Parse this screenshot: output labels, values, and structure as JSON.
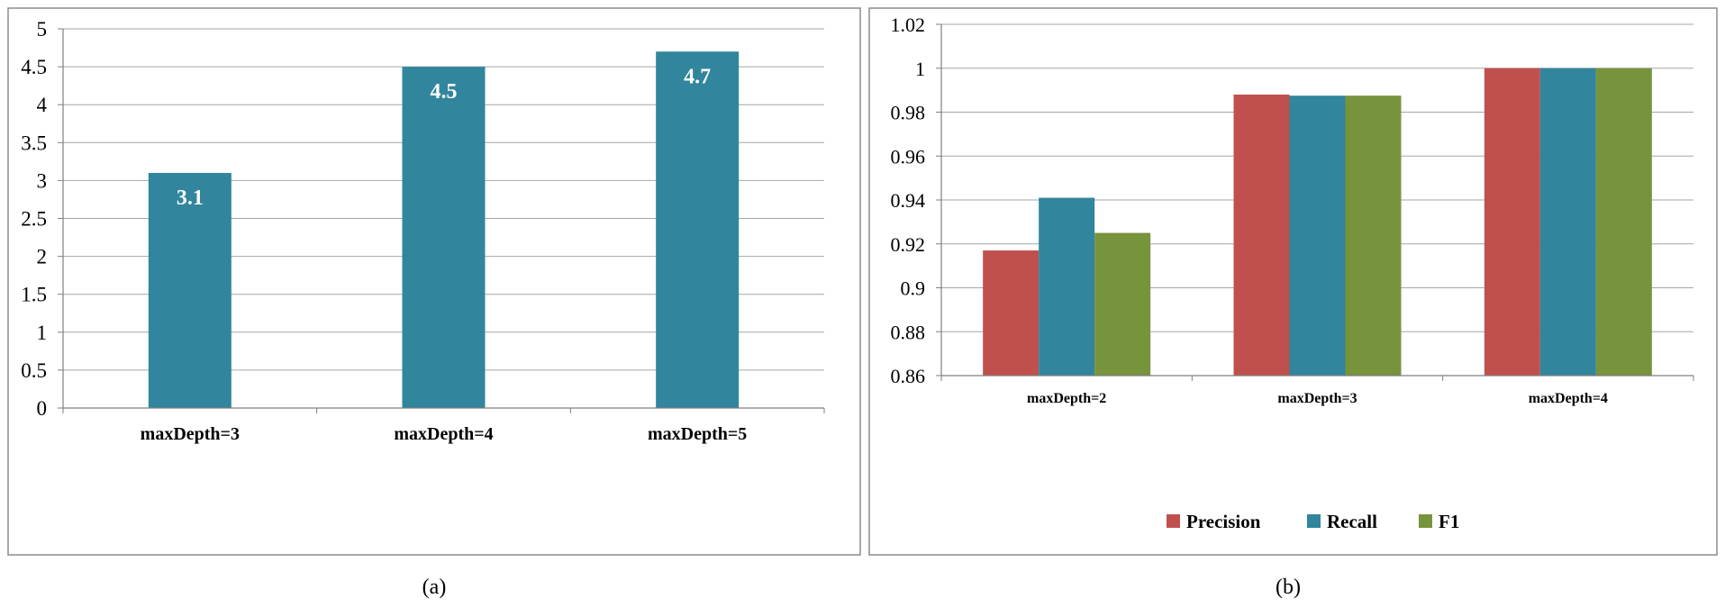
{
  "colors": {
    "bar_a": "#31859c",
    "precision": "#c0504d",
    "recall": "#31859c",
    "f1": "#77933c",
    "grid": "#a6a6a6",
    "frame": "#8c8c8c",
    "axis": "#7f7f7f"
  },
  "chart_data": [
    {
      "type": "bar",
      "caption": "(a)",
      "categories": [
        "maxDepth=3",
        "maxDepth=4",
        "maxDepth=5"
      ],
      "values": [
        3.1,
        4.5,
        4.7
      ],
      "data_labels": [
        "3.1",
        "4.5",
        "4.7"
      ],
      "y_ticks": [
        "0",
        "0.5",
        "1",
        "1.5",
        "2",
        "2.5",
        "3",
        "3.5",
        "4",
        "4.5",
        "5"
      ],
      "ylim": [
        0,
        5
      ],
      "grid": true,
      "legend": "none"
    },
    {
      "type": "bar",
      "caption": "(b)",
      "categories": [
        "maxDepth=2",
        "maxDepth=3",
        "maxDepth=4"
      ],
      "series": [
        {
          "name": "Precision",
          "values": [
            0.917,
            0.988,
            1.0
          ]
        },
        {
          "name": "Recall",
          "values": [
            0.941,
            0.9875,
            1.0
          ]
        },
        {
          "name": "F1",
          "values": [
            0.925,
            0.9875,
            1.0
          ]
        }
      ],
      "y_ticks": [
        "0.86",
        "0.88",
        "0.9",
        "0.92",
        "0.94",
        "0.96",
        "0.98",
        "1",
        "1.02"
      ],
      "ylim": [
        0.86,
        1.02
      ],
      "grid": true,
      "legend": "bottom"
    }
  ]
}
